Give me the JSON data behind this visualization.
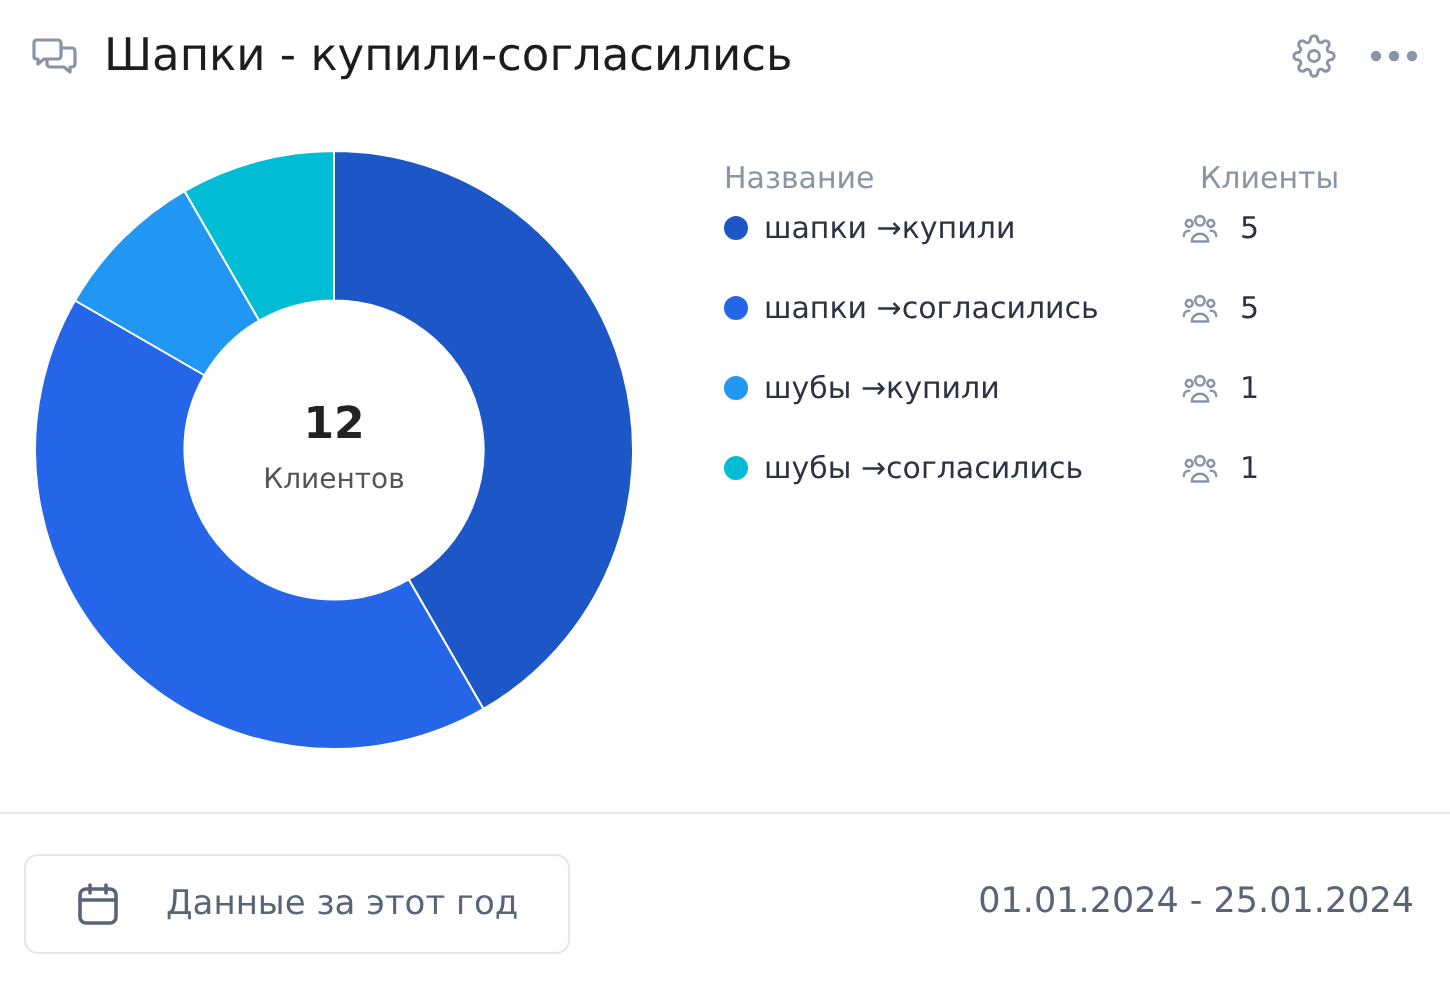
{
  "chart_data": {
    "type": "donut",
    "title": "Шапки - купили-согласились",
    "categories": [
      "шапки →купили",
      "шапки →согласились",
      "шубы →купили",
      "шубы →согласились"
    ],
    "values": [
      5,
      5,
      1,
      1
    ],
    "colors": [
      "#1c56c7",
      "#2566e8",
      "#2196f3",
      "#00bcd4"
    ],
    "data_labels": true,
    "legend": "right",
    "legend_title": "Название",
    "annotations": [
      "12",
      "Клиентов",
      "Клиенты",
      "Данные за этот год",
      "01.01.2024 - 25.01.2024"
    ]
  }
}
